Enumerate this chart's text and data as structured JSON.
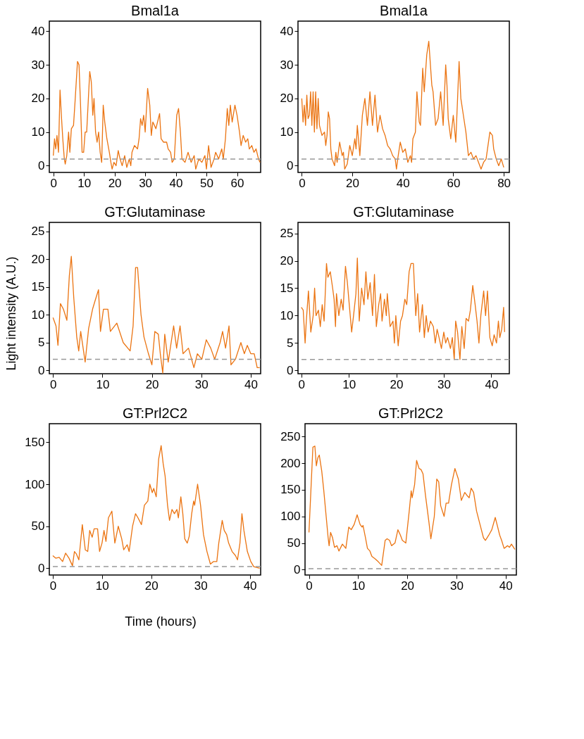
{
  "chart_data": [
    {
      "type": "line",
      "title": "Bmal1a",
      "color": "#eb7412",
      "line_style": "solid",
      "grid": false,
      "x": [
        0,
        0.4,
        0.8,
        1.2,
        1.7,
        2.2,
        2.7,
        3.1,
        3.6,
        3.9,
        4.4,
        5,
        5.4,
        5.9,
        6.6,
        7.1,
        7.9,
        8.4,
        8.9,
        9.4,
        9.9,
        10.4,
        10.9,
        11.4,
        11.9,
        12.4,
        12.9,
        13.3,
        13.8,
        14.3,
        14.8,
        15.3,
        15.8,
        16.3,
        16.8,
        17.5,
        18.3,
        18.8,
        19.2,
        19.8,
        20.5,
        21.2,
        21.8,
        22.5,
        23.3,
        24,
        24.8,
        25.3,
        25.7,
        26.5,
        27.5,
        28,
        28.5,
        29,
        29.5,
        30,
        30.8,
        31.5,
        32,
        32.5,
        33.5,
        34.7,
        35.2,
        36,
        37,
        37.5,
        38.3,
        38.8,
        39.5,
        40.3,
        40.9,
        41.5,
        42,
        43,
        44,
        45,
        46,
        46.5,
        47.5,
        48.5,
        49.5,
        50,
        50.7,
        51.5,
        52.5,
        53,
        54,
        55,
        55.5,
        56.2,
        56.8,
        57.3,
        57.8,
        58.4,
        59.3,
        60,
        60.8,
        61.3,
        62,
        62.8,
        63.5,
        64,
        64.8,
        65.5,
        66.2,
        67,
        67.5
      ],
      "values": [
        3,
        8,
        5,
        9,
        4,
        22.5,
        14,
        8,
        2,
        0.5,
        3,
        10,
        4,
        11,
        12,
        19,
        31,
        30,
        18,
        4,
        4,
        10,
        10,
        19,
        28,
        25,
        15,
        20,
        10,
        7,
        10,
        4,
        1,
        18,
        13,
        8,
        4,
        1,
        -1,
        1,
        0,
        4.5,
        2,
        0,
        3,
        -0.5,
        2,
        0,
        4,
        6,
        5,
        8,
        14,
        12,
        15,
        10,
        23,
        18,
        9,
        13,
        11,
        15.5,
        8,
        7,
        7,
        5,
        4,
        1,
        2,
        15,
        17,
        10,
        2,
        1,
        4,
        1,
        3,
        -1,
        2,
        1,
        3,
        -1,
        6,
        -0.5,
        2,
        4,
        2,
        5,
        2,
        8,
        17,
        12,
        18,
        13,
        18,
        15,
        10,
        6,
        9,
        7,
        8,
        5,
        6,
        4,
        5,
        2,
        1
      ],
      "xlim": [
        -1.3,
        67.7
      ],
      "ylim": [
        -2,
        43
      ],
      "xticks": [
        0,
        10,
        20,
        30,
        40,
        50,
        60
      ],
      "yticks": [
        0,
        10,
        20,
        30,
        40
      ],
      "ref_lines": [
        {
          "axis": "y",
          "value": 2,
          "color": "#999999",
          "line_style": "dashed"
        }
      ]
    },
    {
      "type": "line",
      "title": "Bmal1a",
      "color": "#eb7412",
      "line_style": "solid",
      "grid": false,
      "x": [
        0,
        0.5,
        1,
        1.5,
        2,
        2.5,
        3,
        3.5,
        4,
        4.5,
        5,
        5.5,
        6,
        6.5,
        7,
        8,
        9,
        9.5,
        10,
        10.5,
        11,
        11.5,
        12,
        13,
        13.5,
        14,
        15,
        16,
        16.5,
        17,
        18,
        19,
        20,
        21,
        21.5,
        22,
        23,
        24,
        25,
        26,
        27,
        28,
        29,
        30,
        31,
        32,
        33,
        34,
        35,
        36,
        37,
        37.5,
        38,
        39,
        40,
        41,
        42,
        43,
        43.5,
        44,
        45,
        45.6,
        46.5,
        47,
        47.9,
        48.5,
        49.5,
        50.3,
        51.5,
        52,
        53,
        54,
        55,
        56,
        57,
        57.5,
        58,
        59,
        60,
        61,
        62.3,
        63,
        64,
        65,
        66,
        67,
        68,
        69,
        70,
        71,
        72,
        73,
        74.5,
        75.5,
        76,
        77,
        78,
        79,
        80
      ],
      "values": [
        20,
        13,
        18,
        12,
        21,
        14,
        15,
        22,
        12,
        22,
        10,
        22,
        11,
        20,
        12,
        9,
        10,
        6,
        9,
        16,
        14,
        5,
        2,
        0,
        4,
        1,
        7,
        3,
        4,
        -1,
        0.5,
        6,
        3,
        8,
        5,
        12,
        3,
        15,
        20,
        12,
        22,
        12,
        21,
        10,
        15,
        11,
        9,
        6,
        5,
        3,
        2,
        -1,
        2,
        7,
        4,
        5,
        1,
        3,
        1,
        8,
        10,
        22,
        13,
        12,
        29,
        22,
        33,
        37,
        24,
        22,
        12,
        14,
        22,
        12,
        30,
        24,
        14,
        8,
        15,
        7,
        31,
        20,
        15,
        10,
        3,
        4,
        2,
        3,
        1,
        -1,
        1,
        2,
        10,
        9,
        5,
        2,
        0,
        2,
        -0.5
      ],
      "xlim": [
        -1.5,
        82.2
      ],
      "ylim": [
        -2,
        43
      ],
      "xticks": [
        0,
        20,
        40,
        60,
        80
      ],
      "yticks": [
        0,
        10,
        20,
        30,
        40
      ],
      "ref_lines": [
        {
          "axis": "y",
          "value": 2,
          "color": "#999999",
          "line_style": "dashed"
        }
      ]
    },
    {
      "type": "line",
      "title": "GT:Glutaminase",
      "ylabel": "Light intensity (A.U.)",
      "color": "#eb7412",
      "line_style": "solid",
      "grid": false,
      "x": [
        0,
        0.6,
        1,
        1.5,
        2.1,
        2.8,
        3.3,
        3.7,
        4.2,
        4.8,
        5.2,
        5.6,
        6.5,
        7.2,
        8,
        8.5,
        9.2,
        9.6,
        10.2,
        11.1,
        11.6,
        12.9,
        14.2,
        15.6,
        16.2,
        16.7,
        17.1,
        17.8,
        18.4,
        19.3,
        20,
        20.6,
        21.3,
        21.7,
        22.2,
        22.6,
        23.3,
        24.4,
        25,
        25.7,
        26.3,
        27.4,
        28.5,
        29.2,
        30.1,
        31,
        31.9,
        32.7,
        33.8,
        34.3,
        34.9,
        35.6,
        36,
        36.9,
        38,
        38.7,
        39.3,
        40,
        40.7,
        41.3,
        41.8
      ],
      "values": [
        9.5,
        8,
        4.5,
        12,
        11,
        9,
        17,
        20.5,
        13,
        6,
        3.5,
        7,
        1.5,
        7.5,
        11,
        12.5,
        14.5,
        7,
        11,
        11,
        7,
        8.5,
        5,
        3.5,
        8,
        18.5,
        18.5,
        10,
        6,
        3,
        1,
        7,
        6.5,
        3,
        -0.5,
        6.5,
        1.5,
        8,
        4,
        8,
        3,
        4,
        0.5,
        3,
        2,
        5.5,
        4,
        2,
        5,
        7,
        4,
        8,
        1,
        2,
        5,
        3,
        4.5,
        3,
        3,
        0.5,
        0.5
      ],
      "xlim": [
        -0.75,
        42
      ],
      "ylim": [
        -0.6,
        26.6
      ],
      "xticks": [
        0,
        10,
        20,
        30,
        40
      ],
      "yticks": [
        0,
        5,
        10,
        15,
        20,
        25
      ],
      "ref_lines": [
        {
          "axis": "y",
          "value": 2,
          "color": "#999999",
          "line_style": "dashed"
        }
      ]
    },
    {
      "type": "line",
      "title": "GT:Glutaminase",
      "color": "#eb7412",
      "line_style": "solid",
      "grid": false,
      "x": [
        0,
        0.4,
        0.8,
        1.05,
        1.5,
        2,
        2.5,
        2.8,
        3.1,
        3.6,
        4,
        4.4,
        4.8,
        5.3,
        5.6,
        6.1,
        6.6,
        6.9,
        7.2,
        7.4,
        7.9,
        8.4,
        8.8,
        9.3,
        9.7,
        10.2,
        10.6,
        11,
        11.5,
        11.8,
        12.2,
        12.7,
        13.2,
        13.6,
        14,
        14.5,
        15,
        15.4,
        15.8,
        16.3,
        16.7,
        17,
        17.5,
        17.9,
        18.1,
        18.7,
        19.3,
        19.6,
        19.9,
        20.4,
        20.9,
        21.3,
        21.8,
        22.2,
        22.7,
        23.1,
        23.6,
        24.1,
        24.5,
        24.9,
        25.5,
        25.9,
        26.3,
        26.7,
        27.2,
        27.8,
        28.2,
        28.6,
        29,
        29.5,
        30,
        30.4,
        30.8,
        31.4,
        31.8,
        32.2,
        32.5,
        32.9,
        33.4,
        33.8,
        34.3,
        34.7,
        35.2,
        35.6,
        36.1,
        36.6,
        37,
        37.4,
        37.8,
        38.4,
        38.8,
        39.2,
        39.7,
        40.2,
        40.6,
        41.1,
        41.5,
        41.8,
        42.2,
        42.6,
        42.8
      ],
      "values": [
        11.5,
        11,
        5,
        9,
        14.5,
        7,
        10,
        15,
        10,
        11,
        8,
        12,
        9,
        19.5,
        17,
        18,
        15,
        13,
        8,
        14,
        10,
        13,
        11,
        19,
        16,
        11,
        7,
        10,
        14,
        20.5,
        9,
        15,
        12,
        18,
        13,
        16,
        10,
        17.5,
        8,
        12,
        14,
        9,
        13,
        10,
        14,
        8,
        9,
        5,
        10,
        4.5,
        9,
        10,
        13,
        12,
        18,
        19.5,
        19.5,
        10,
        14,
        7,
        12,
        6,
        10,
        7,
        9,
        8,
        5,
        7.5,
        6,
        4,
        7,
        5,
        6,
        4,
        6,
        2,
        9,
        7,
        2,
        8,
        4,
        9.5,
        9,
        11,
        15.5,
        12,
        9,
        5,
        10,
        14.5,
        10,
        14.5,
        6,
        4.5,
        6.5,
        5,
        9,
        6,
        7.5,
        11.5,
        7
      ],
      "xlim": [
        -0.7,
        43.8
      ],
      "ylim": [
        -0.6,
        27
      ],
      "xticks": [
        0,
        10,
        20,
        30,
        40
      ],
      "yticks": [
        0,
        5,
        10,
        15,
        20,
        25
      ],
      "ref_lines": [
        {
          "axis": "y",
          "value": 2,
          "color": "#999999",
          "line_style": "dashed"
        }
      ]
    },
    {
      "type": "line",
      "title": "GT:Prl2C2",
      "xlabel": "Time (hours)",
      "color": "#eb7412",
      "line_style": "solid",
      "grid": false,
      "x": [
        0,
        0.6,
        1.3,
        2,
        2.6,
        3.3,
        4,
        4.4,
        4.8,
        5.3,
        6,
        6.6,
        7.1,
        7.5,
        8,
        8.4,
        9.1,
        9.5,
        10,
        10.4,
        10.8,
        11.3,
        12,
        12.6,
        13.3,
        14,
        14.4,
        15.1,
        15.5,
        16.2,
        16.8,
        17.3,
        18,
        18.6,
        19.3,
        19.7,
        20.2,
        20.5,
        21,
        21.5,
        22,
        22.4,
        22.8,
        23.3,
        23.7,
        24.2,
        24.7,
        25.2,
        25.5,
        26,
        26.4,
        26.8,
        27.3,
        27.7,
        28.2,
        28.6,
        28.8,
        29.4,
        30,
        30.6,
        31.3,
        32,
        32.6,
        33.3,
        33.7,
        34.4,
        34.8,
        35.3,
        35.7,
        36.4,
        37.1,
        37.5,
        38,
        38.4,
        38.8,
        39.5,
        40.2,
        40.8,
        42
      ],
      "values": [
        15,
        12,
        13,
        8,
        18,
        12,
        3,
        20,
        17,
        10,
        52,
        22,
        20,
        45,
        37,
        47,
        47,
        20,
        30,
        45,
        32,
        60,
        68,
        30,
        50,
        35,
        22,
        28,
        20,
        50,
        65,
        60,
        52,
        75,
        80,
        100,
        90,
        95,
        85,
        130,
        146,
        125,
        110,
        75,
        57,
        70,
        65,
        70,
        60,
        85,
        65,
        35,
        30,
        38,
        65,
        80,
        75,
        100,
        75,
        40,
        20,
        5,
        8,
        8,
        30,
        57,
        45,
        40,
        30,
        20,
        15,
        10,
        30,
        65,
        45,
        20,
        8,
        2,
        0
      ],
      "xlim": [
        -0.7,
        42.2
      ],
      "ylim": [
        -8,
        172
      ],
      "xticks": [
        0,
        10,
        20,
        30,
        40
      ],
      "yticks": [
        0,
        50,
        100,
        150
      ],
      "ref_lines": [
        {
          "axis": "y",
          "value": 2,
          "color": "#999999",
          "line_style": "dashed"
        }
      ]
    },
    {
      "type": "line",
      "title": "GT:Prl2C2",
      "color": "#eb7412",
      "line_style": "solid",
      "grid": false,
      "x": [
        0,
        0.4,
        0.8,
        1.2,
        1.5,
        1.8,
        2.1,
        2.6,
        3,
        3.5,
        3.9,
        4.1,
        4.4,
        4.8,
        5.2,
        5.7,
        6.1,
        6.8,
        7.5,
        8.1,
        8.6,
        9.2,
        9.8,
        10.4,
        10.8,
        11,
        11.5,
        11.9,
        12.4,
        12.8,
        13.5,
        14.1,
        14.8,
        15.5,
        15.9,
        16.4,
        16.8,
        17.5,
        18.1,
        18.6,
        19,
        19.7,
        20.4,
        20.8,
        21,
        21.5,
        21.9,
        22.4,
        22.8,
        23.2,
        23.7,
        24.4,
        24.8,
        25.5,
        26,
        26.4,
        26.8,
        27.5,
        27.9,
        28.4,
        29,
        29.7,
        30.4,
        31,
        31.7,
        32.1,
        32.6,
        33,
        33.5,
        34.1,
        34.8,
        35.5,
        35.9,
        36.6,
        37.2,
        37.9,
        38.4,
        38.8,
        39.2,
        39.7,
        40.4,
        40.8,
        41.2,
        41.9
      ],
      "values": [
        70,
        150,
        230,
        232,
        195,
        210,
        215,
        185,
        150,
        100,
        60,
        45,
        70,
        60,
        42,
        45,
        35,
        48,
        40,
        80,
        75,
        85,
        103,
        85,
        80,
        83,
        60,
        40,
        35,
        25,
        20,
        15,
        8,
        55,
        58,
        55,
        45,
        50,
        75,
        65,
        55,
        50,
        110,
        148,
        135,
        160,
        205,
        190,
        188,
        180,
        140,
        90,
        58,
        100,
        170,
        165,
        120,
        100,
        125,
        125,
        160,
        190,
        170,
        130,
        145,
        140,
        135,
        153,
        145,
        110,
        85,
        60,
        55,
        65,
        75,
        98,
        80,
        65,
        55,
        40,
        45,
        42,
        48,
        38
      ],
      "xlim": [
        -0.8,
        42.2
      ],
      "ylim": [
        -10,
        274
      ],
      "xticks": [
        0,
        10,
        20,
        30,
        40
      ],
      "yticks": [
        0,
        50,
        100,
        150,
        200,
        250
      ],
      "ref_lines": [
        {
          "axis": "y",
          "value": 2,
          "color": "#999999",
          "line_style": "dashed"
        }
      ]
    }
  ]
}
